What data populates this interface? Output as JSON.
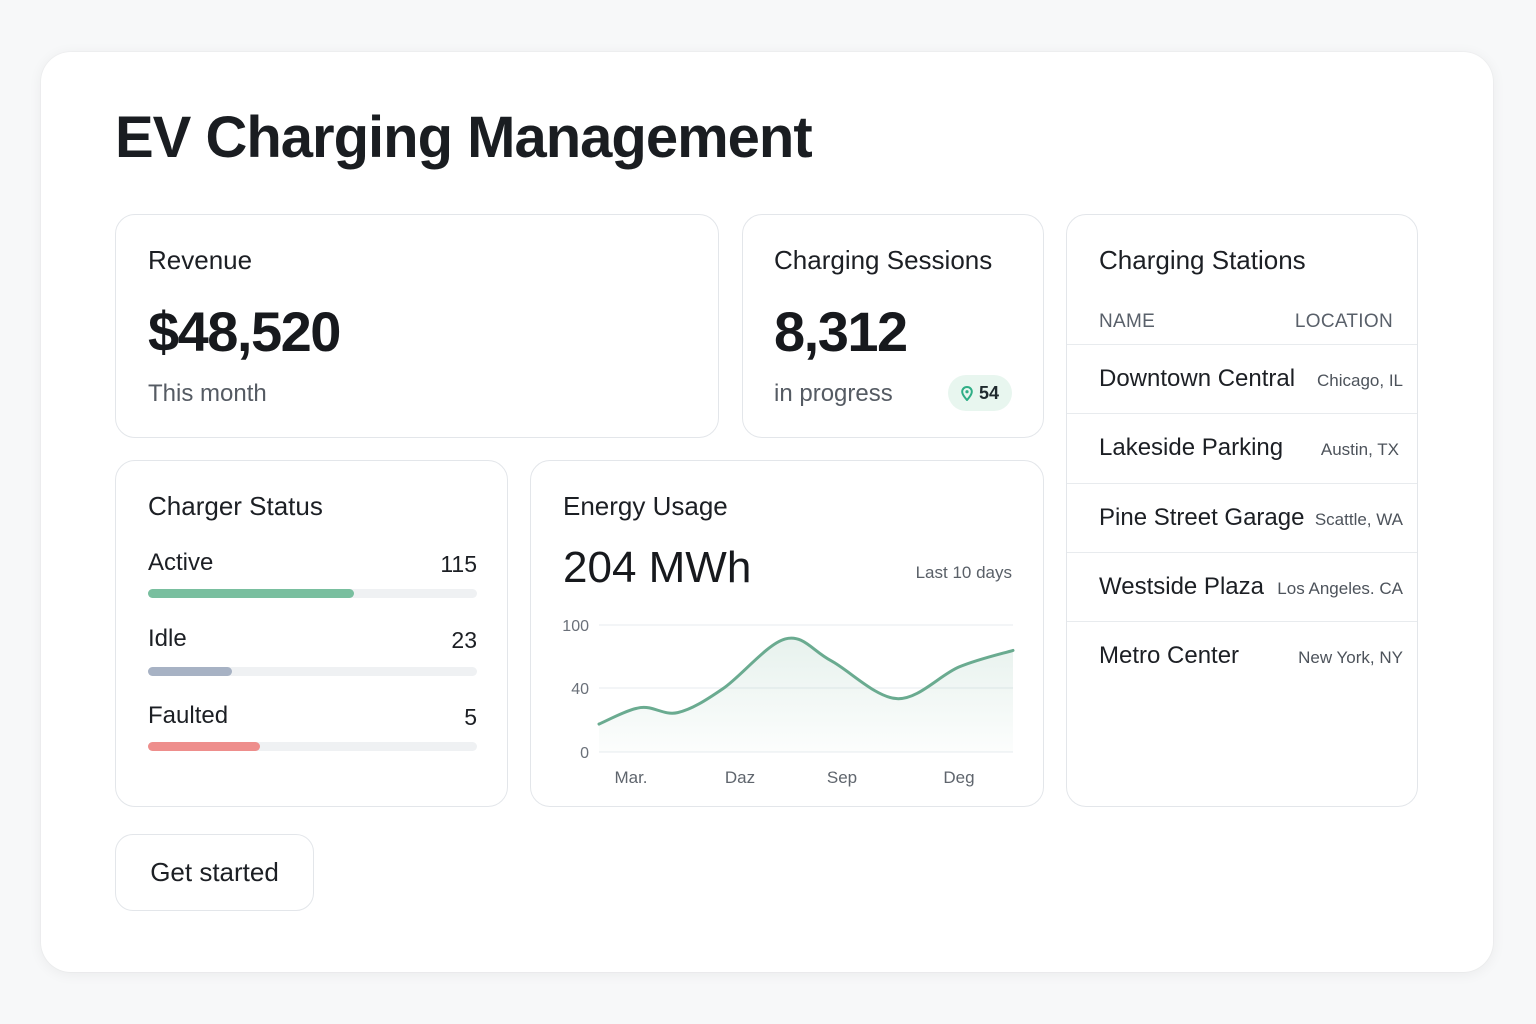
{
  "page": {
    "title": "EV Charging Management"
  },
  "revenue": {
    "title": "Revenue",
    "value": "$48,520",
    "caption": "This month"
  },
  "sessions": {
    "title": "Charging Sessions",
    "value": "8,312",
    "caption": "in progress",
    "badge_count": "54",
    "badge_icon": "map-pin-icon"
  },
  "stations": {
    "title": "Charging Stations",
    "columns": {
      "name": "NAME",
      "location": "LOCATION"
    },
    "rows": [
      {
        "name": "Downtown Central",
        "location": "Chicago, IL"
      },
      {
        "name": "Lakeside Parking",
        "location": "Austin, TX"
      },
      {
        "name": "Pine Street Garage",
        "location": "Scattle, WA"
      },
      {
        "name": "Westside Plaza",
        "location": "Los Angeles. CA"
      },
      {
        "name": "Metro Center",
        "location": "New York, NY"
      }
    ]
  },
  "charger_status": {
    "title": "Charger Status",
    "items": [
      {
        "label": "Active",
        "count": "115",
        "level": 0.625,
        "color": "#79bf9f"
      },
      {
        "label": "Idle",
        "count": "23",
        "level": 0.255,
        "color": "#a7b2c4"
      },
      {
        "label": "Faulted",
        "count": "5",
        "level": 0.34,
        "color": "#ee8e8c"
      }
    ]
  },
  "energy": {
    "title": "Energy Usage",
    "value": "204 MWh",
    "range": "Last 10 days",
    "chart_data": {
      "type": "area",
      "y_ticks": [
        "100",
        "40",
        "0"
      ],
      "x_ticks": [
        "Mar.",
        "Daz",
        "Sep",
        "Deg"
      ],
      "grid": true,
      "line_color": "#6aab90",
      "points": [
        [
          0.0,
          22
        ],
        [
          0.1,
          35
        ],
        [
          0.19,
          31
        ],
        [
          0.3,
          50
        ],
        [
          0.45,
          89
        ],
        [
          0.56,
          72
        ],
        [
          0.72,
          42
        ],
        [
          0.87,
          67
        ],
        [
          1.0,
          80
        ]
      ]
    }
  },
  "cta": {
    "label": "Get started"
  }
}
